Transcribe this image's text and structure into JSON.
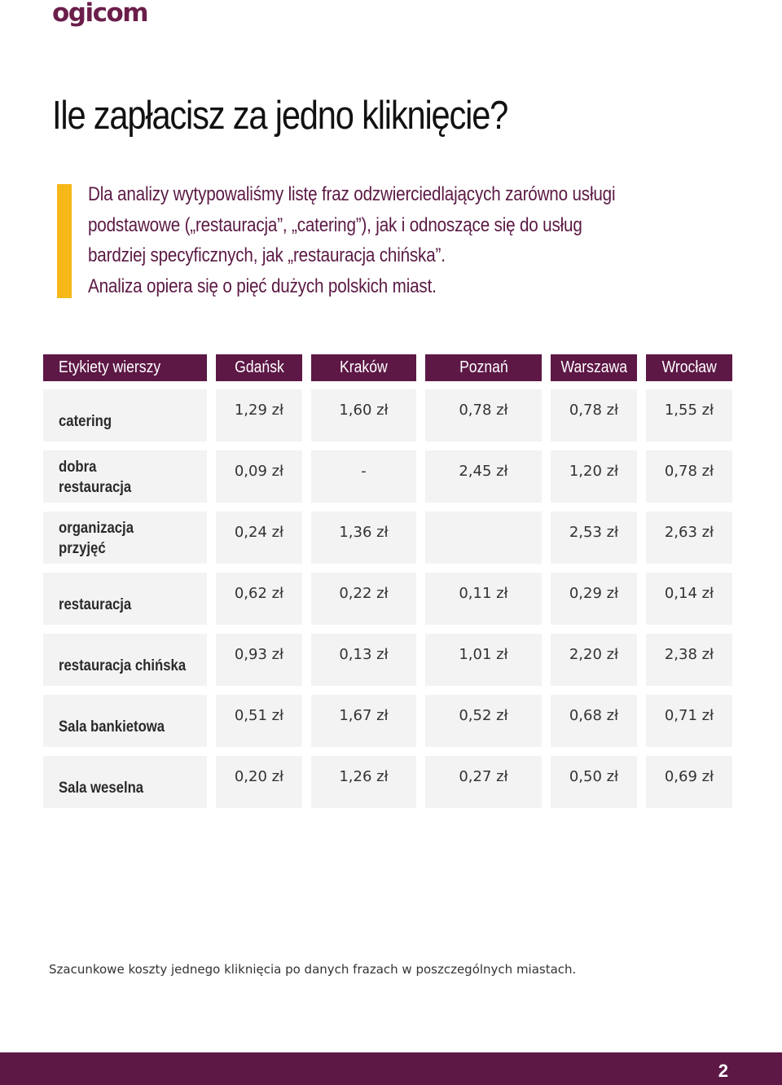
{
  "brand": {
    "logo_text": "ogicom"
  },
  "title": "Ile zapłacisz za jedno kliknięcie?",
  "intro_lines": [
    "Dla analizy wytypowaliśmy listę fraz odzwierciedlających zarówno usługi",
    "podstawowe („restauracja”, „catering”), jak i odnoszące się do usług",
    "bardziej specyficznych, jak „restauracja chińska”.",
    "Analiza opiera się o pięć dużych polskich miast."
  ],
  "table": {
    "headers": [
      "Etykiety wierszy",
      "Gdańsk",
      "Kraków",
      "Poznań",
      "Warszawa",
      "Wrocław"
    ],
    "rows": [
      {
        "label": [
          "catering"
        ],
        "values": [
          "1,29 zł",
          "1,60 zł",
          "0,78 zł",
          "0,78 zł",
          "1,55 zł"
        ]
      },
      {
        "label": [
          "dobra",
          "restauracja"
        ],
        "values": [
          "0,09 zł",
          "-",
          "2,45 zł",
          "1,20 zł",
          "0,78 zł"
        ]
      },
      {
        "label": [
          "organizacja",
          "przyjęć"
        ],
        "values": [
          "0,24 zł",
          "1,36 zł",
          "",
          "2,53 zł",
          "2,63 zł"
        ]
      },
      {
        "label": [
          "restauracja"
        ],
        "values": [
          "0,62 zł",
          "0,22 zł",
          "0,11 zł",
          "0,29 zł",
          "0,14 zł"
        ]
      },
      {
        "label": [
          "restauracja chińska"
        ],
        "values": [
          "0,93 zł",
          "0,13 zł",
          "1,01 zł",
          "2,20 zł",
          "2,38 zł"
        ]
      },
      {
        "label": [
          "Sala bankietowa"
        ],
        "values": [
          "0,51 zł",
          "1,67 zł",
          "0,52 zł",
          "0,68 zł",
          "0,71 zł"
        ]
      },
      {
        "label": [
          "Sala weselna"
        ],
        "values": [
          "0,20 zł",
          "1,26 zł",
          "0,27 zł",
          "0,50 zł",
          "0,69 zł"
        ]
      }
    ]
  },
  "caption": "Szacunkowe koszty jednego kliknięcia po danych frazach w poszczególnych miastach.",
  "footer": {
    "page_number": "2"
  },
  "colors": {
    "brand_purple": "#5d1846",
    "accent_yellow": "#f6b819",
    "cell_gray": "#f3f3f3"
  }
}
